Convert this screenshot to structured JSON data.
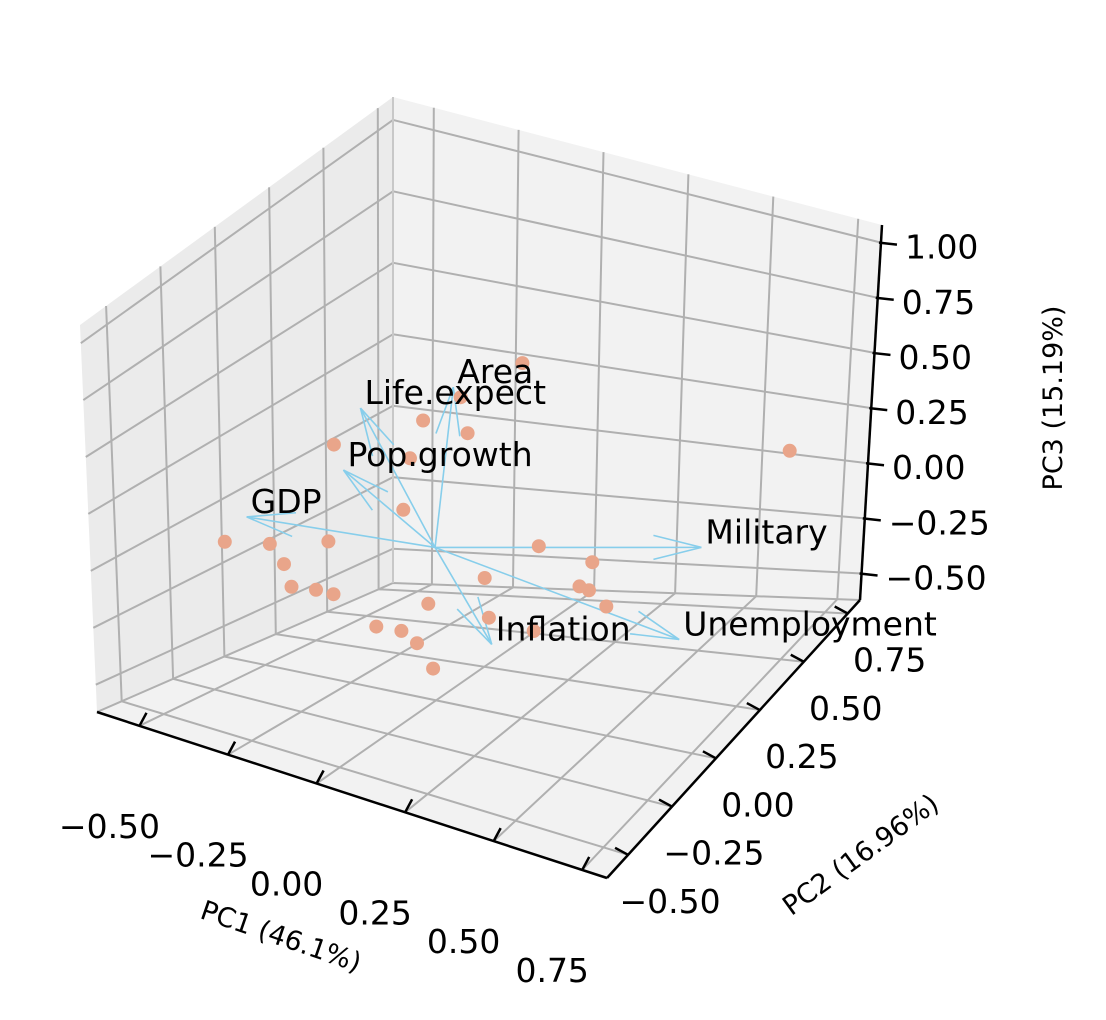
{
  "chart_data": {
    "type": "scatter",
    "projection": "3d",
    "title": "",
    "xlabel": "PC1 (46.1%)",
    "ylabel": "PC2 (16.96%)",
    "zlabel": "PC3 (15.19%)",
    "xlim": [
      -0.62,
      0.82
    ],
    "ylim": [
      -0.62,
      0.82
    ],
    "zlim": [
      -0.62,
      1.08
    ],
    "x_ticks": [
      -0.5,
      -0.25,
      0.0,
      0.25,
      0.5,
      0.75
    ],
    "y_ticks": [
      -0.5,
      -0.25,
      0.0,
      0.25,
      0.5,
      0.75
    ],
    "z_ticks": [
      -0.5,
      -0.25,
      0.0,
      0.25,
      0.5,
      0.75,
      1.0
    ],
    "x_tick_labels": [
      "−0.50",
      "−0.25",
      "0.00",
      "0.25",
      "0.50",
      "0.75"
    ],
    "y_tick_labels": [
      "−0.50",
      "−0.25",
      "0.00",
      "0.25",
      "0.50",
      "0.75"
    ],
    "z_tick_labels": [
      "−0.50",
      "−0.25",
      "0.00",
      "0.25",
      "0.50",
      "0.75",
      "1.00"
    ],
    "grid": true,
    "point_color": "#e9a58a",
    "arrow_color": "#87ceeb",
    "loadings": [
      {
        "name": "Area",
        "x": 0.02,
        "y": 0.06,
        "z": 0.62
      },
      {
        "name": "Life.expect",
        "x": -0.32,
        "y": 0.18,
        "z": 0.36
      },
      {
        "name": "Military",
        "x": 0.62,
        "y": 0.28,
        "z": 0.0
      },
      {
        "name": "Pop.growth",
        "x": -0.42,
        "y": 0.26,
        "z": 0.05
      },
      {
        "name": "GDP",
        "x": -0.62,
        "y": 0.12,
        "z": -0.12
      },
      {
        "name": "Unemployment",
        "x": 0.55,
        "y": 0.3,
        "z": -0.42
      },
      {
        "name": "Inflation",
        "x": 0.33,
        "y": -0.3,
        "z": -0.1
      }
    ],
    "scores": [
      {
        "x": -0.55,
        "y": -0.1,
        "z": -0.1
      },
      {
        "x": -0.45,
        "y": -0.05,
        "z": -0.1
      },
      {
        "x": -0.35,
        "y": -0.15,
        "z": -0.1
      },
      {
        "x": -0.3,
        "y": -0.2,
        "z": -0.15
      },
      {
        "x": -0.2,
        "y": -0.25,
        "z": -0.1
      },
      {
        "x": -0.15,
        "y": -0.25,
        "z": -0.1
      },
      {
        "x": 0.0,
        "y": -0.3,
        "z": -0.15
      },
      {
        "x": 0.1,
        "y": -0.35,
        "z": -0.1
      },
      {
        "x": 0.15,
        "y": -0.3,
        "z": 0.0
      },
      {
        "x": 0.2,
        "y": -0.45,
        "z": -0.05
      },
      {
        "x": 0.3,
        "y": -0.55,
        "z": -0.05
      },
      {
        "x": 0.35,
        "y": -0.35,
        "z": 0.05
      },
      {
        "x": 0.45,
        "y": -0.3,
        "z": 0.0
      },
      {
        "x": 0.5,
        "y": -0.1,
        "z": 0.05
      },
      {
        "x": 0.5,
        "y": -0.15,
        "z": 0.1
      },
      {
        "x": 0.4,
        "y": 0.1,
        "z": 0.0
      },
      {
        "x": 0.3,
        "y": 0.0,
        "z": 0.1
      },
      {
        "x": 0.2,
        "y": -0.1,
        "z": 0.0
      },
      {
        "x": -0.15,
        "y": 0.1,
        "z": 0.05
      },
      {
        "x": -0.25,
        "y": -0.1,
        "z": 0.0
      },
      {
        "x": -0.35,
        "y": 0.1,
        "z": 0.25
      },
      {
        "x": -0.1,
        "y": 0.05,
        "z": 0.3
      },
      {
        "x": -0.15,
        "y": 0.2,
        "z": 0.35
      },
      {
        "x": -0.05,
        "y": 0.25,
        "z": 0.3
      },
      {
        "x": -0.1,
        "y": 0.3,
        "z": 0.4
      },
      {
        "x": 0.05,
        "y": 0.35,
        "z": 0.55
      },
      {
        "x": 0.7,
        "y": 0.6,
        "z": 0.2
      },
      {
        "x": 0.55,
        "y": -0.1,
        "z": 0.0
      }
    ]
  }
}
